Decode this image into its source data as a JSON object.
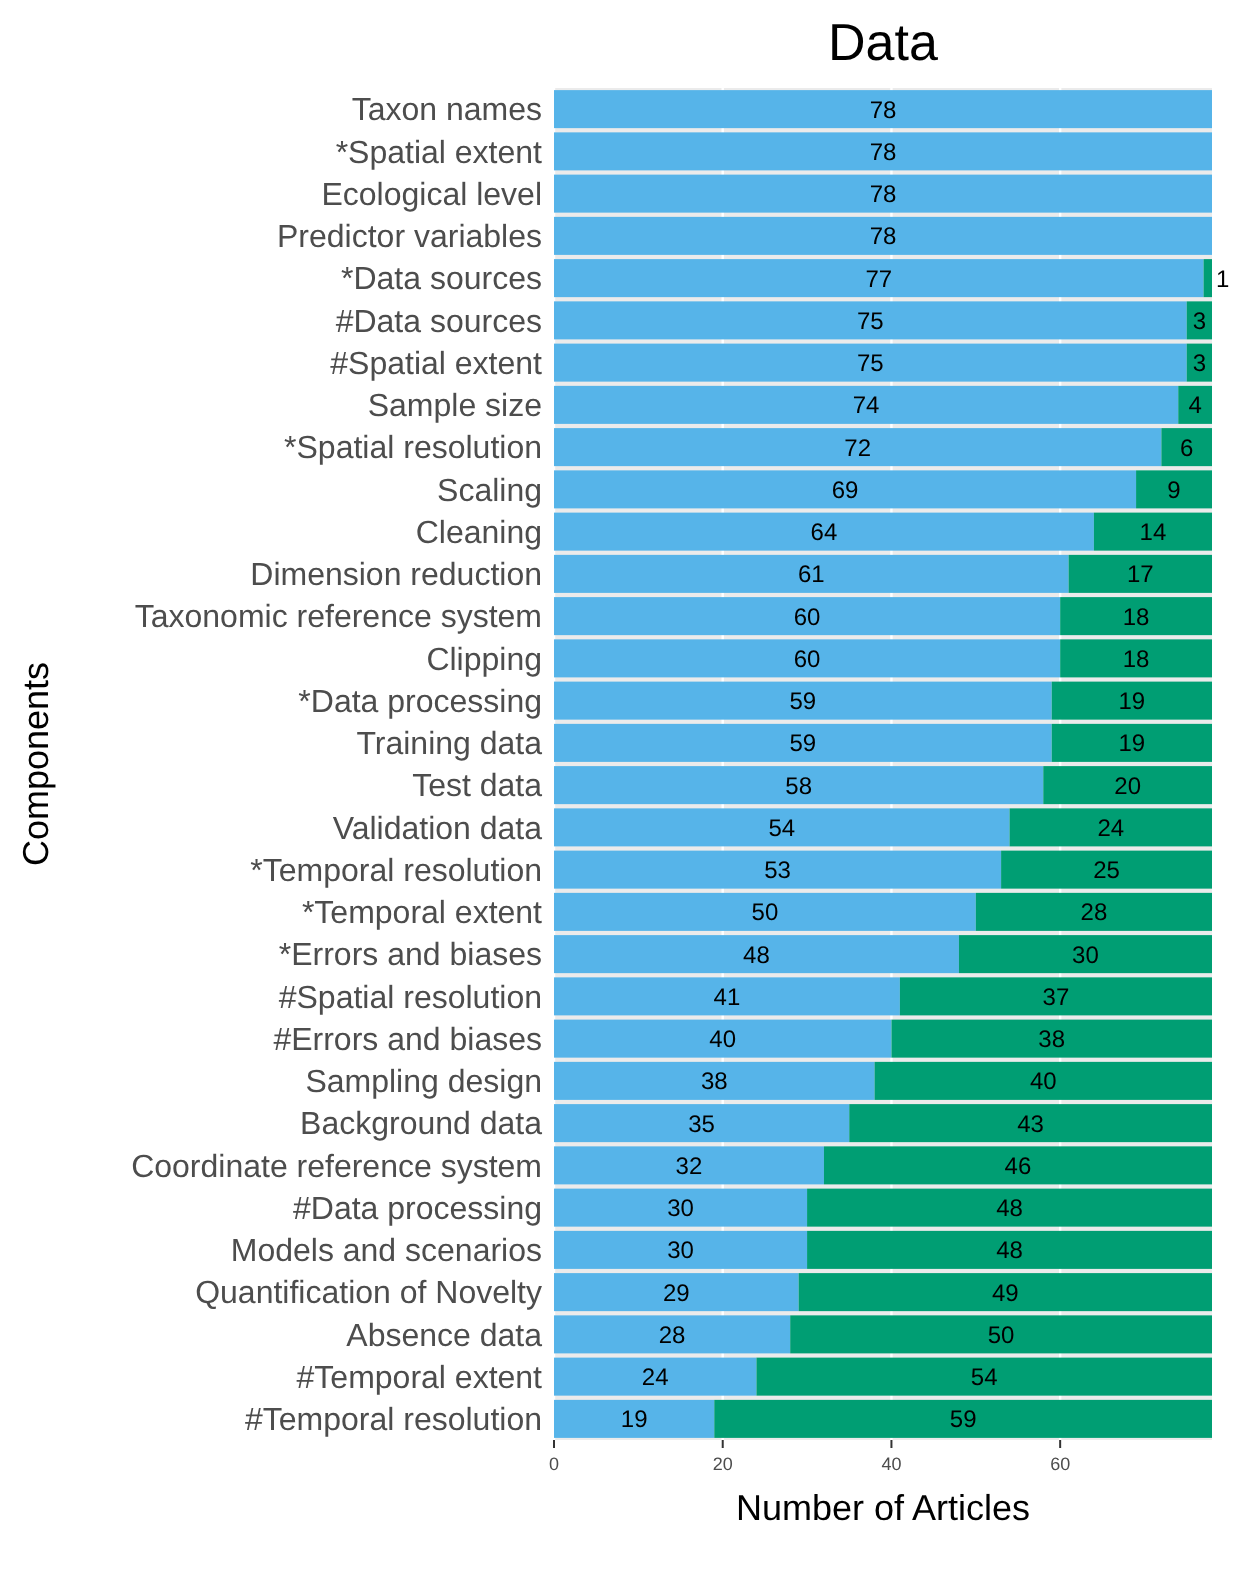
{
  "chart_data": {
    "type": "bar",
    "orientation": "horizontal",
    "stacked": true,
    "title": "Data",
    "xlabel": "Number of Articles",
    "ylabel": "Components",
    "categories": [
      "Taxon names",
      "*Spatial extent",
      "Ecological level",
      "Predictor variables",
      "*Data sources",
      "#Data sources",
      "#Spatial extent",
      "Sample size",
      "*Spatial resolution",
      "Scaling",
      "Cleaning",
      "Dimension reduction",
      "Taxonomic reference system",
      "Clipping",
      "*Data processing",
      "Training data",
      "Test data",
      "Validation data",
      "*Temporal resolution",
      "*Temporal extent",
      "*Errors and biases",
      "#Spatial resolution",
      "#Errors and biases",
      "Sampling design",
      "Background data",
      "Coordinate reference system",
      "#Data processing",
      "Models and scenarios",
      "Quantification of Novelty",
      "Absence data",
      "#Temporal extent",
      "#Temporal resolution"
    ],
    "series": [
      {
        "color": "#56b4e9",
        "values": [
          78,
          78,
          78,
          78,
          77,
          75,
          75,
          74,
          72,
          69,
          64,
          61,
          60,
          60,
          59,
          59,
          58,
          54,
          53,
          50,
          48,
          41,
          40,
          38,
          35,
          32,
          30,
          30,
          29,
          28,
          24,
          19
        ],
        "value_labels": [
          "78",
          "78",
          "78",
          "78",
          "77",
          "75",
          "75",
          "74",
          "72",
          "69",
          "64",
          "61",
          "60",
          "60",
          "59",
          "59",
          "58",
          "54",
          "53",
          "50",
          "48",
          "41",
          "40",
          "38",
          "35",
          "32",
          "30",
          "30",
          "29",
          "28",
          "24",
          "19"
        ]
      },
      {
        "color": "#009e73",
        "values": [
          0,
          0,
          0,
          0,
          1,
          3,
          3,
          4,
          6,
          9,
          14,
          17,
          18,
          18,
          19,
          19,
          20,
          24,
          25,
          28,
          30,
          37,
          38,
          40,
          43,
          46,
          48,
          48,
          49,
          50,
          54,
          59
        ],
        "value_labels": [
          null,
          null,
          null,
          null,
          "1",
          "3",
          "3",
          "4",
          "6",
          "9",
          "14",
          "17",
          "18",
          "18",
          "19",
          "19",
          "20",
          "24",
          "25",
          "28",
          "30",
          "37",
          "38",
          "40",
          "43",
          "46",
          "48",
          "48",
          "49",
          "50",
          "54",
          "59"
        ]
      }
    ],
    "xlim": [
      0,
      78
    ],
    "xticks": [
      0,
      20,
      40,
      60
    ],
    "grid": "x"
  }
}
